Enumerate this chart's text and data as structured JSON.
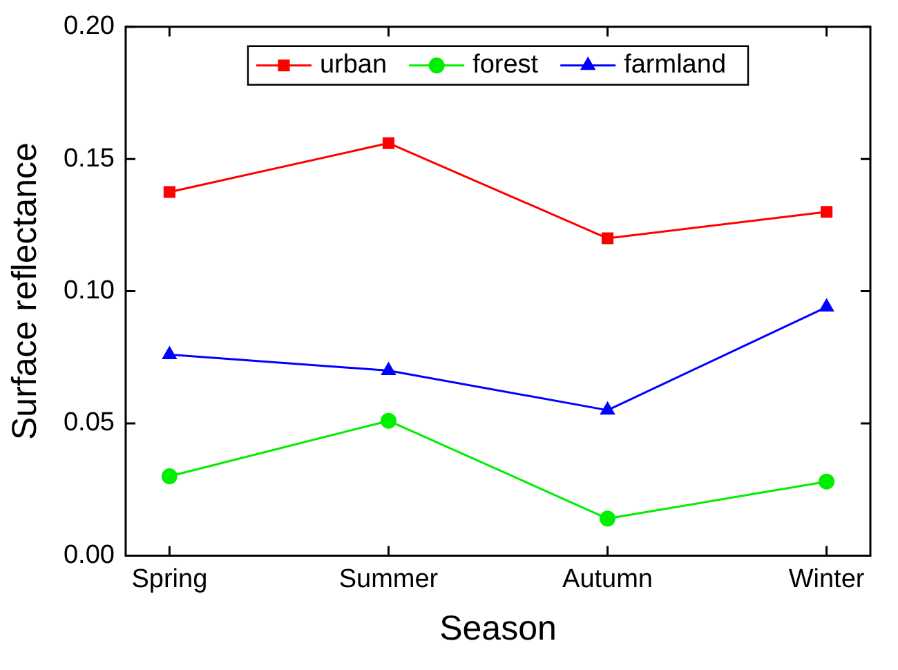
{
  "chart_data": {
    "type": "line",
    "xlabel": "Season",
    "ylabel": "Surface reflectance",
    "categories": [
      "Spring",
      "Summer",
      "Autumn",
      "Winter"
    ],
    "series": [
      {
        "name": "urban",
        "color": "#ff0000",
        "marker": "square",
        "values": [
          0.1375,
          0.156,
          0.12,
          0.13
        ]
      },
      {
        "name": "forest",
        "color": "#00ee00",
        "marker": "circle",
        "values": [
          0.03,
          0.051,
          0.014,
          0.028
        ]
      },
      {
        "name": "farmland",
        "color": "#0000ff",
        "marker": "triangle",
        "values": [
          0.076,
          0.07,
          0.055,
          0.094
        ]
      }
    ],
    "ylim": [
      0,
      0.2
    ],
    "yticks": [
      {
        "value": 0,
        "label": "0.00"
      },
      {
        "value": 0.05,
        "label": "0.05"
      },
      {
        "value": 0.1,
        "label": "0.10"
      },
      {
        "value": 0.15,
        "label": "0.15"
      },
      {
        "value": 0.2,
        "label": "0.20"
      }
    ],
    "grid": false,
    "legend": "top",
    "line_style": "solid"
  }
}
